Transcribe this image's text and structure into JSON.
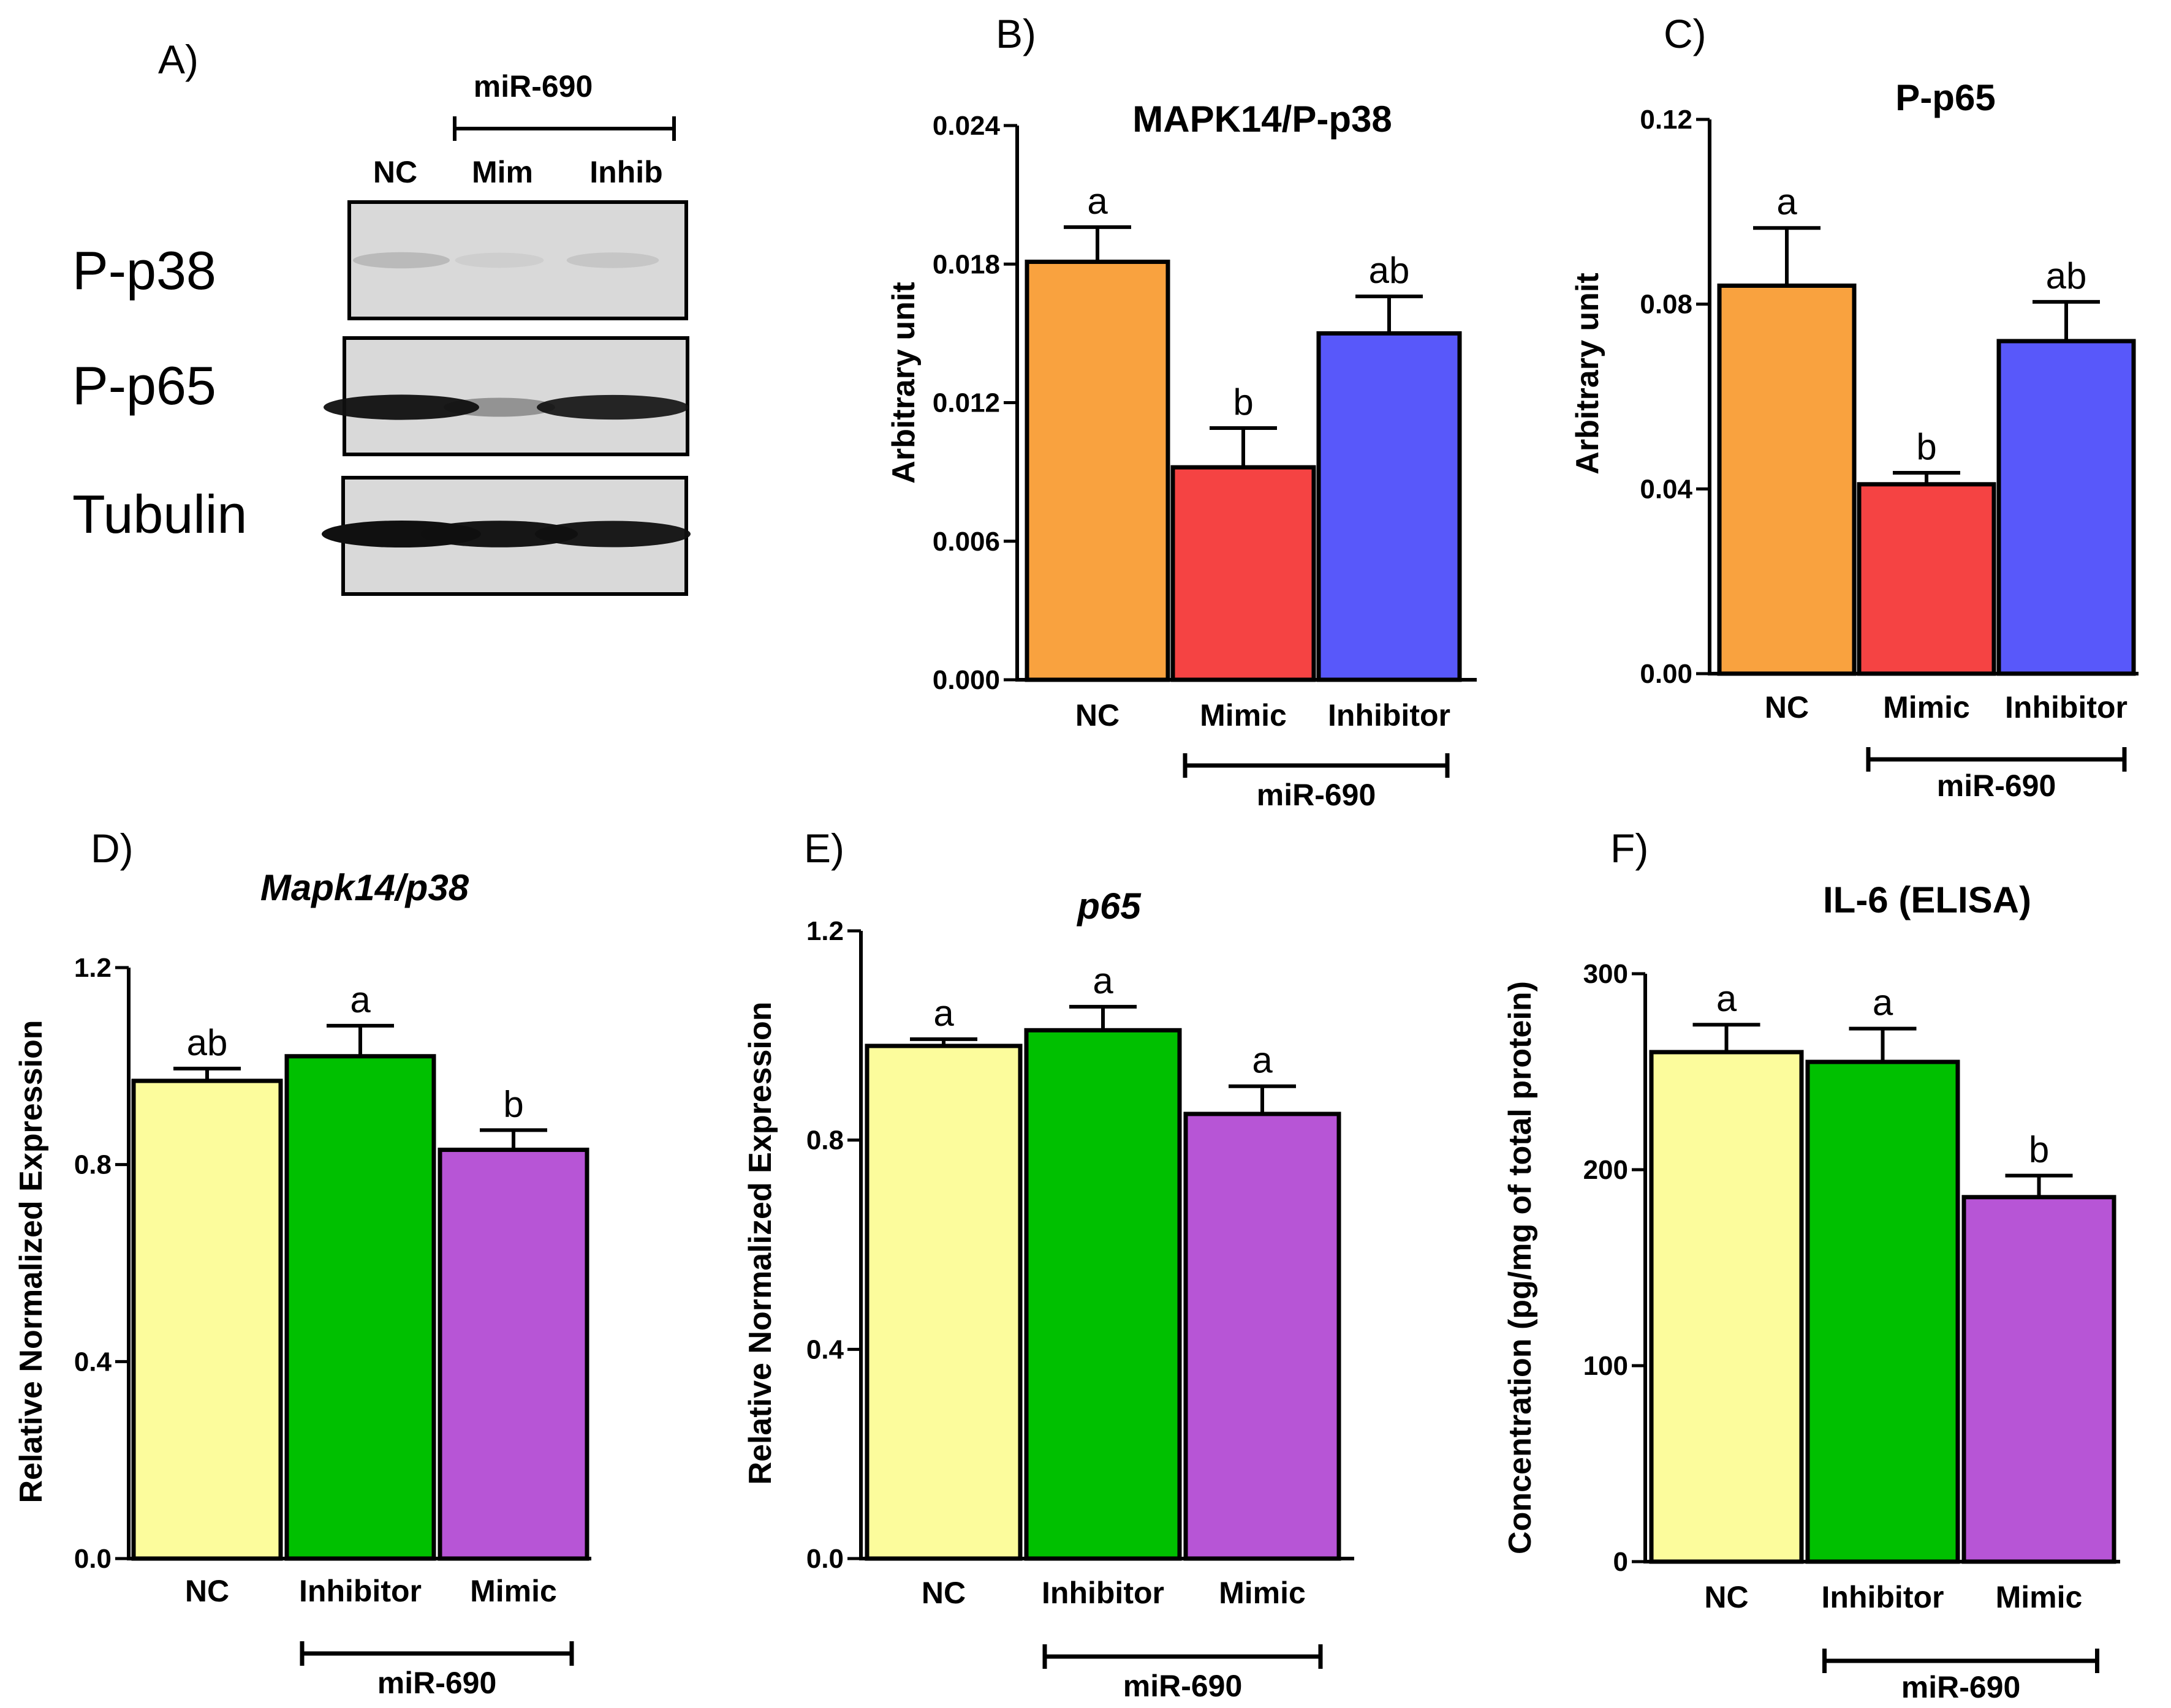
{
  "figure": {
    "panel_labels": [
      "A)",
      "B)",
      "C)",
      "D)",
      "E)",
      "F)"
    ]
  },
  "western_blot": {
    "panel_label": "A)",
    "treatment_label": "miR-690",
    "lane_labels": [
      "NC",
      "Mim",
      "Inhib"
    ],
    "row_labels": [
      "P-p38",
      "P-p65",
      "Tubulin"
    ],
    "band_intensity": {
      "P-p38": [
        0.15,
        0.04,
        0.09
      ],
      "P-p65": [
        0.95,
        0.35,
        0.9
      ],
      "Tubulin": [
        1.0,
        0.97,
        0.95
      ]
    }
  },
  "colors": {
    "nc_orange": "#F9A23F",
    "mimic_red": "#F54343",
    "inhibitor_blue": "#5858FA",
    "nc_yellow": "#FCFC9C",
    "inhibitor_green": "#00C000",
    "mimic_purple": "#B755D6"
  },
  "chart_data": [
    {
      "id": "B",
      "panel_label": "B)",
      "type": "bar",
      "title": "MAPK14/P-p38",
      "title_italic": false,
      "ylabel": "Arbitrary unit",
      "ylim": [
        0,
        0.024
      ],
      "yticks": [
        "0.000",
        "0.006",
        "0.012",
        "0.018",
        "0.024"
      ],
      "categories": [
        "NC",
        "Mimic",
        "Inhibitor"
      ],
      "values": [
        0.0181,
        0.0092,
        0.015
      ],
      "errors": [
        0.0015,
        0.0017,
        0.0016
      ],
      "significance": [
        "a",
        "b",
        "ab"
      ],
      "bar_colors": [
        "#F9A23F",
        "#F54343",
        "#5858FA"
      ],
      "group_label": "miR-690"
    },
    {
      "id": "C",
      "panel_label": "C)",
      "type": "bar",
      "title": "P-p65",
      "title_italic": false,
      "ylabel": "Arbitrary unit",
      "ylim": [
        0,
        0.12
      ],
      "yticks": [
        "0.00",
        "0.04",
        "0.08",
        "0.12"
      ],
      "categories": [
        "NC",
        "Mimic",
        "Inhibitor"
      ],
      "values": [
        0.084,
        0.041,
        0.072
      ],
      "errors": [
        0.0125,
        0.0025,
        0.0085
      ],
      "significance": [
        "a",
        "b",
        "ab"
      ],
      "bar_colors": [
        "#F9A23F",
        "#F54343",
        "#5858FA"
      ],
      "group_label": "miR-690"
    },
    {
      "id": "D",
      "panel_label": "D)",
      "type": "bar",
      "title": "Mapk14/p38",
      "title_italic": true,
      "ylabel": "Relative Normalized Expression",
      "ylim": [
        0,
        1.2
      ],
      "yticks": [
        "0.0",
        "0.4",
        "0.8",
        "1.2"
      ],
      "categories": [
        "NC",
        "Inhibitor",
        "Mimic"
      ],
      "values": [
        0.97,
        1.02,
        0.83
      ],
      "errors": [
        0.025,
        0.062,
        0.04
      ],
      "significance": [
        "ab",
        "a",
        "b"
      ],
      "bar_colors": [
        "#FCFC9C",
        "#00C000",
        "#B755D6"
      ],
      "group_label": "miR-690"
    },
    {
      "id": "E",
      "panel_label": "E)",
      "type": "bar",
      "title": "p65",
      "title_italic": true,
      "ylabel": "Relative Normalized Expression",
      "ylim": [
        0,
        1.2
      ],
      "yticks": [
        "0.0",
        "0.4",
        "0.8",
        "1.2"
      ],
      "categories": [
        "NC",
        "Inhibitor",
        "Mimic"
      ],
      "values": [
        0.98,
        1.01,
        0.85
      ],
      "errors": [
        0.013,
        0.045,
        0.053
      ],
      "significance": [
        "a",
        "a",
        "a"
      ],
      "bar_colors": [
        "#FCFC9C",
        "#00C000",
        "#B755D6"
      ],
      "group_label": "miR-690"
    },
    {
      "id": "F",
      "panel_label": "F)",
      "type": "bar",
      "title": "IL-6 (ELISA)",
      "title_italic": false,
      "ylabel": "Concentration (pg/mg of total protein)",
      "ylim": [
        0,
        300
      ],
      "yticks": [
        "0",
        "100",
        "200",
        "300"
      ],
      "categories": [
        "NC",
        "Inhibitor",
        "Mimic"
      ],
      "values": [
        260,
        255,
        186
      ],
      "errors": [
        14,
        17,
        11
      ],
      "significance": [
        "a",
        "a",
        "b"
      ],
      "bar_colors": [
        "#FCFC9C",
        "#00C000",
        "#B755D6"
      ],
      "group_label": "miR-690"
    }
  ]
}
